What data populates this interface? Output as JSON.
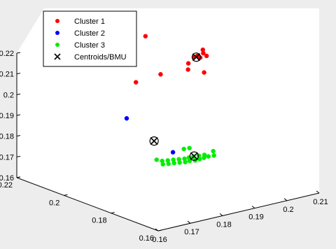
{
  "chart_data": {
    "type": "scatter",
    "projection": "3d",
    "title": "",
    "legend_position": "top-left",
    "grid": false,
    "axes_ranges": {
      "x": [
        0.16,
        0.21
      ],
      "y": [
        0.16,
        0.22
      ],
      "z": [
        0.16,
        0.22
      ]
    },
    "x_ticks": [
      "0.16",
      "0.17",
      "0.18",
      "0.19",
      "0.2",
      "0.21"
    ],
    "y_ticks": [
      "0.16",
      "0.18",
      "0.2",
      "0.22"
    ],
    "z_ticks": [
      "0.16",
      "0.17",
      "0.18",
      "0.19",
      "0.2",
      "0.21",
      "0.22"
    ],
    "series": [
      {
        "name": "Cluster 1",
        "color": "#ff0000",
        "marker": "filled-circle",
        "points": [
          [
            0.2055,
            0.207,
            0.207
          ],
          [
            0.2058,
            0.206,
            0.208
          ],
          [
            0.206,
            0.205,
            0.2075
          ],
          [
            0.2062,
            0.204,
            0.21
          ],
          [
            0.2065,
            0.203,
            0.209
          ],
          [
            0.2068,
            0.205,
            0.211
          ],
          [
            0.2045,
            0.208,
            0.204
          ],
          [
            0.205,
            0.202,
            0.202
          ],
          [
            0.201,
            0.215,
            0.197
          ],
          [
            0.1985,
            0.218,
            0.215
          ],
          [
            0.197,
            0.22,
            0.1925
          ],
          [
            0.2055,
            0.2095,
            0.2
          ]
        ]
      },
      {
        "name": "Cluster 2",
        "color": "#0000ff",
        "marker": "filled-circle",
        "points": [
          [
            0.189,
            0.213,
            0.181
          ],
          [
            0.188,
            0.192,
            0.174
          ]
        ]
      },
      {
        "name": "Cluster 3",
        "color": "#00ee00",
        "marker": "filled-circle",
        "points": [
          [
            0.18,
            0.188,
            0.175
          ],
          [
            0.181,
            0.187,
            0.1745
          ],
          [
            0.182,
            0.186,
            0.1748
          ],
          [
            0.183,
            0.185,
            0.1752
          ],
          [
            0.184,
            0.184,
            0.1755
          ],
          [
            0.185,
            0.183,
            0.1758
          ],
          [
            0.186,
            0.1825,
            0.1762
          ],
          [
            0.187,
            0.182,
            0.1765
          ],
          [
            0.188,
            0.181,
            0.177
          ],
          [
            0.189,
            0.18,
            0.1775
          ],
          [
            0.1805,
            0.186,
            0.1735
          ],
          [
            0.1815,
            0.185,
            0.1738
          ],
          [
            0.1825,
            0.184,
            0.1742
          ],
          [
            0.1835,
            0.183,
            0.1745
          ],
          [
            0.1845,
            0.182,
            0.1748
          ],
          [
            0.1855,
            0.1815,
            0.1752
          ],
          [
            0.1865,
            0.1805,
            0.1755
          ],
          [
            0.1875,
            0.18,
            0.176
          ],
          [
            0.1885,
            0.1795,
            0.1765
          ],
          [
            0.1895,
            0.179,
            0.177
          ],
          [
            0.1905,
            0.178,
            0.1775
          ],
          [
            0.191,
            0.179,
            0.179
          ],
          [
            0.187,
            0.186,
            0.1785
          ],
          [
            0.188,
            0.185,
            0.179
          ]
        ]
      },
      {
        "name": "Centroids/BMU",
        "color": "#000000",
        "marker": "x-in-circle",
        "points": [
          [
            0.2055,
            0.206,
            0.2075
          ],
          [
            0.188,
            0.2,
            0.176
          ],
          [
            0.188,
            0.183,
            0.176
          ]
        ]
      }
    ]
  }
}
